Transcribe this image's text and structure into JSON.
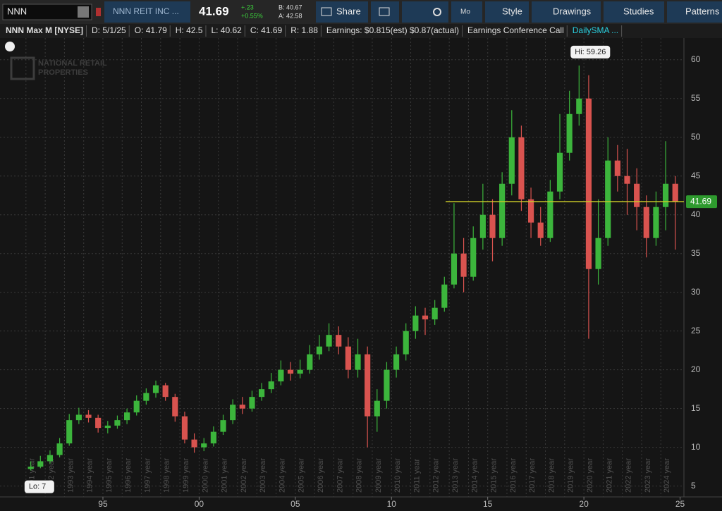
{
  "toolbar": {
    "symbol": "NNN",
    "description": "NNN REIT INC ...",
    "last": "41.69",
    "change": "+.23",
    "change_pct": "+0.55%",
    "bid": "B: 40.67",
    "ask": "A: 42.58",
    "share": "Share",
    "aggregation": "Mo",
    "style": "Style",
    "drawings": "Drawings",
    "studies": "Studies",
    "patterns": "Patterns"
  },
  "info_bar": [
    "NNN Max M [NYSE]",
    "D: 5/1/25",
    "O: 41.79",
    "H: 42.5",
    "L: 40.62",
    "C: 41.69",
    "R: 1.88",
    "Earnings: $0.815(est) $0.87(actual)",
    "Earnings Conference Call",
    "DailySMA ..."
  ],
  "watermark": [
    "NATIONAL RETAIL",
    "PROPERTIES"
  ],
  "chart_data": {
    "type": "candlestick",
    "up_color": "#3cb53c",
    "down_color": "#d9534f",
    "x": [
      1991.0,
      1991.5,
      1992.0,
      1992.5,
      1993.0,
      1993.5,
      1994.0,
      1994.5,
      1995.0,
      1995.5,
      1996.0,
      1996.5,
      1997.0,
      1997.5,
      1998.0,
      1998.5,
      1999.0,
      1999.5,
      2000.0,
      2000.5,
      2001.0,
      2001.5,
      2002.0,
      2002.5,
      2003.0,
      2003.5,
      2004.0,
      2004.5,
      2005.0,
      2005.5,
      2006.0,
      2006.5,
      2007.0,
      2007.5,
      2008.0,
      2008.5,
      2009.0,
      2009.5,
      2010.0,
      2010.5,
      2011.0,
      2011.5,
      2012.0,
      2012.5,
      2013.0,
      2013.5,
      2014.0,
      2014.5,
      2015.0,
      2015.5,
      2016.0,
      2016.5,
      2017.0,
      2017.5,
      2018.0,
      2018.5,
      2019.0,
      2019.5,
      2020.0,
      2020.5,
      2021.0,
      2021.5,
      2022.0,
      2022.5,
      2023.0,
      2023.5,
      2024.0,
      2024.5
    ],
    "open": [
      7.2,
      7.5,
      8.2,
      9.0,
      10.5,
      13.5,
      14.2,
      13.8,
      12.5,
      12.8,
      13.5,
      14.5,
      16.0,
      17.0,
      18.0,
      16.5,
      14.0,
      11.0,
      10.0,
      10.5,
      12.0,
      13.5,
      15.5,
      15.0,
      16.5,
      17.5,
      18.5,
      20.0,
      19.5,
      20.0,
      22.0,
      23.0,
      24.5,
      23.0,
      20.0,
      22.0,
      14.0,
      16.0,
      20.0,
      22.0,
      25.0,
      27.0,
      26.5,
      28.0,
      31.0,
      35.0,
      32.0,
      37.0,
      40.0,
      37.0,
      44.0,
      50.0,
      42.0,
      39.0,
      37.0,
      43.0,
      48.0,
      53.0,
      55.0,
      33.0,
      37.0,
      47.0,
      45.0,
      44.0,
      41.0,
      37.0,
      41.0,
      44.0
    ],
    "high": [
      8.2,
      8.9,
      9.6,
      11.2,
      14.3,
      15.1,
      14.8,
      14.2,
      13.4,
      14.1,
      15.0,
      16.7,
      17.6,
      18.6,
      18.3,
      16.9,
      14.6,
      11.8,
      11.2,
      12.7,
      14.2,
      16.2,
      16.5,
      17.3,
      18.3,
      19.6,
      21.2,
      21.0,
      21.3,
      23.2,
      24.5,
      26.0,
      25.6,
      24.2,
      24.0,
      23.0,
      17.5,
      21.0,
      23.0,
      26.0,
      28.2,
      28.0,
      29.0,
      32.0,
      41.5,
      37.0,
      38.5,
      44.0,
      42.0,
      45.5,
      53.5,
      51.5,
      43.5,
      41.0,
      44.5,
      53.0,
      56.0,
      59.26,
      58.0,
      42.0,
      50.0,
      49.0,
      48.5,
      46.0,
      42.5,
      43.0,
      49.5,
      45.0
    ],
    "low": [
      7.0,
      7.3,
      7.9,
      8.7,
      10.2,
      13.0,
      13.2,
      11.9,
      11.8,
      12.4,
      13.0,
      14.1,
      15.5,
      16.4,
      16.0,
      13.3,
      10.5,
      9.3,
      9.5,
      10.1,
      11.6,
      13.0,
      14.3,
      14.6,
      16.0,
      17.0,
      18.0,
      18.6,
      18.9,
      19.5,
      21.3,
      22.4,
      22.0,
      18.9,
      19.0,
      10.0,
      12.0,
      15.0,
      19.0,
      21.2,
      24.0,
      24.5,
      25.8,
      27.5,
      30.5,
      30.0,
      31.5,
      35.5,
      34.0,
      36.0,
      42.5,
      40.5,
      37.0,
      36.0,
      36.5,
      42.0,
      47.0,
      51.5,
      24.0,
      31.0,
      36.0,
      43.0,
      40.0,
      38.0,
      34.5,
      36.0,
      38.0,
      35.5
    ],
    "close": [
      7.5,
      8.2,
      9.0,
      10.5,
      13.5,
      14.2,
      13.8,
      12.5,
      12.8,
      13.5,
      14.5,
      16.0,
      17.0,
      18.0,
      16.5,
      14.0,
      11.0,
      10.0,
      10.5,
      12.0,
      13.5,
      15.5,
      15.0,
      16.5,
      17.5,
      18.5,
      20.0,
      19.5,
      20.0,
      22.0,
      23.0,
      24.5,
      23.0,
      20.0,
      22.0,
      14.0,
      16.0,
      20.0,
      22.0,
      25.0,
      27.0,
      26.5,
      28.0,
      31.0,
      35.0,
      32.0,
      37.0,
      40.0,
      37.0,
      44.0,
      50.0,
      42.0,
      39.0,
      37.0,
      43.0,
      48.0,
      53.0,
      55.0,
      33.0,
      37.0,
      47.0,
      45.0,
      44.0,
      41.0,
      37.0,
      41.0,
      44.0,
      41.69
    ],
    "last_price": 41.69,
    "hi_label": "Hi: 59.26",
    "lo_label": "Lo: 7",
    "xlim": [
      1989.65,
      2025.2
    ],
    "ylim": [
      3.6,
      62.8
    ],
    "yticks": [
      5,
      10,
      15,
      20,
      25,
      30,
      35,
      40,
      45,
      50,
      55,
      60
    ],
    "xticks": [
      {
        "value": 1995,
        "label": "95"
      },
      {
        "value": 2000,
        "label": "00"
      },
      {
        "value": 2005,
        "label": "05"
      },
      {
        "value": 2010,
        "label": "10"
      },
      {
        "value": 2015,
        "label": "15"
      },
      {
        "value": 2020,
        "label": "20"
      },
      {
        "value": 2025,
        "label": "25"
      }
    ],
    "year_lines": [
      {
        "value": 1991,
        "label": "1991 year"
      },
      {
        "value": 1992,
        "label": "1992 year"
      },
      {
        "value": 1993,
        "label": "1993 year"
      },
      {
        "value": 1994,
        "label": "1994 year"
      },
      {
        "value": 1995,
        "label": "1995 year"
      },
      {
        "value": 1996,
        "label": "1996 year"
      },
      {
        "value": 1997,
        "label": "1997 year"
      },
      {
        "value": 1998,
        "label": "1998 year"
      },
      {
        "value": 1999,
        "label": "1999 year"
      },
      {
        "value": 2000,
        "label": "2000 year"
      },
      {
        "value": 2001,
        "label": "2001 year"
      },
      {
        "value": 2002,
        "label": "2002 year"
      },
      {
        "value": 2003,
        "label": "2003 year"
      },
      {
        "value": 2004,
        "label": "2004 year"
      },
      {
        "value": 2005,
        "label": "2005 year"
      },
      {
        "value": 2006,
        "label": "2006 year"
      },
      {
        "value": 2007,
        "label": "2007 year"
      },
      {
        "value": 2008,
        "label": "2008 year"
      },
      {
        "value": 2009,
        "label": "2009 year"
      },
      {
        "value": 2010,
        "label": "2010 year"
      },
      {
        "value": 2011,
        "label": "2011 year"
      },
      {
        "value": 2012,
        "label": "2012 year"
      },
      {
        "value": 2013,
        "label": "2013 year"
      },
      {
        "value": 2014,
        "label": "2014 year"
      },
      {
        "value": 2015,
        "label": "2015 year"
      },
      {
        "value": 2016,
        "label": "2016 year"
      },
      {
        "value": 2017,
        "label": "2017 year"
      },
      {
        "value": 2018,
        "label": "2018 year"
      },
      {
        "value": 2019,
        "label": "2019 year"
      },
      {
        "value": 2020,
        "label": "2020 year"
      },
      {
        "value": 2021,
        "label": "2021 year"
      },
      {
        "value": 2022,
        "label": "2022 year"
      },
      {
        "value": 2023,
        "label": "2023 year"
      },
      {
        "value": 2024,
        "label": "2024 year"
      }
    ],
    "grid": true
  }
}
